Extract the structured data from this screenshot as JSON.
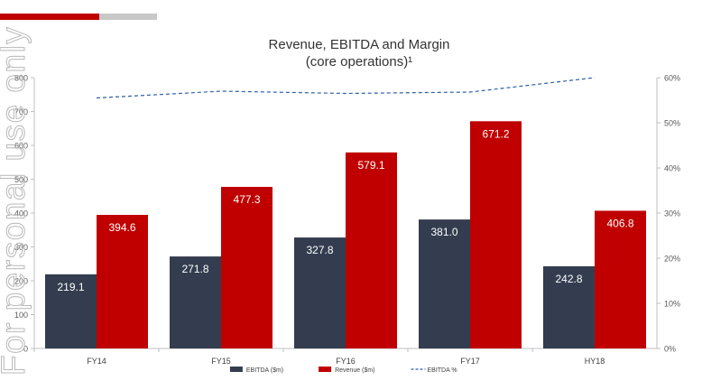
{
  "watermark": {
    "text": "For personal use only"
  },
  "chart_data": {
    "type": "bar",
    "title": "Revenue, EBITDA and Margin",
    "subtitle": "(core operations)¹",
    "categories": [
      "FY14",
      "FY15",
      "FY16",
      "FY17",
      "HY18"
    ],
    "series": [
      {
        "name": "EBITDA ($m)",
        "kind": "bar",
        "axis": "left",
        "color": "#333d4f",
        "values": [
          219.1,
          271.8,
          327.8,
          381.0,
          242.8
        ],
        "labels": [
          "219.1",
          "271.8",
          "327.8",
          "381.0",
          "242.8"
        ]
      },
      {
        "name": "Revenue ($m)",
        "kind": "bar",
        "axis": "left",
        "color": "#c00000",
        "values": [
          394.6,
          477.3,
          579.1,
          671.2,
          406.8
        ],
        "labels": [
          "394.6",
          "477.3",
          "579.1",
          "671.2",
          "406.8"
        ]
      },
      {
        "name": "EBITDA %",
        "kind": "line",
        "axis": "right",
        "color": "#2e5fa8",
        "dashed": true,
        "values": [
          55.5,
          57.0,
          56.5,
          56.8,
          60.0
        ]
      }
    ],
    "y_left": {
      "min": 0,
      "max": 800,
      "ticks": [
        "0",
        "100",
        "200",
        "300",
        "400",
        "500",
        "600",
        "700",
        "800"
      ]
    },
    "y_right": {
      "min": 0,
      "max": 60,
      "ticks": [
        "0%",
        "10%",
        "20%",
        "30%",
        "40%",
        "50%",
        "60%"
      ]
    },
    "legend": "bottom",
    "grid": false
  }
}
